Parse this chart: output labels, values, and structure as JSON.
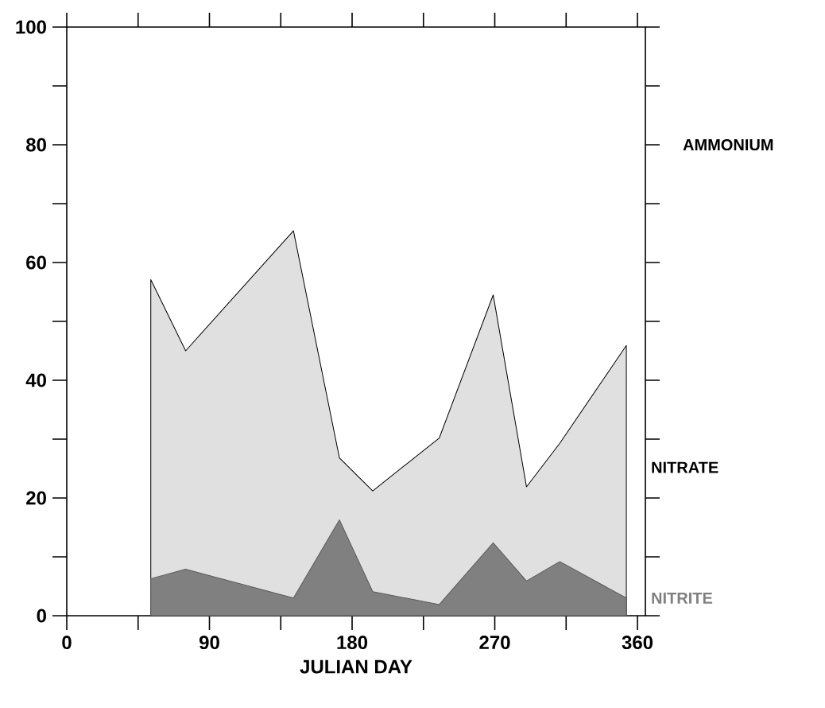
{
  "chart_data": {
    "type": "area",
    "xlabel": "JULIAN DAY",
    "xlim": [
      0,
      365
    ],
    "ylim": [
      0,
      100
    ],
    "xticks": [
      0,
      {
        "value": 45,
        "label": null
      },
      90,
      {
        "value": 135,
        "label": null
      },
      180,
      {
        "value": 225,
        "label": null
      },
      270,
      {
        "value": 315,
        "label": null
      },
      360
    ],
    "yticks": [
      0,
      {
        "value": 10,
        "label": null
      },
      20,
      {
        "value": 30,
        "label": null
      },
      40,
      {
        "value": 50,
        "label": null
      },
      60,
      {
        "value": 70,
        "label": null
      },
      80,
      {
        "value": 90,
        "label": null
      },
      100
    ],
    "x": [
      53,
      75,
      143,
      172,
      193,
      235,
      269,
      290,
      311,
      353
    ],
    "series": [
      {
        "name": "NITRATE",
        "color": "#000000",
        "values": [
          57.1,
          45.0,
          65.4,
          26.8,
          21.2,
          30.2,
          54.5,
          21.9,
          29.3,
          45.9
        ]
      },
      {
        "name": "NITRITE",
        "color": "#808080",
        "values": [
          6.3,
          7.9,
          3.0,
          16.3,
          4.1,
          1.9,
          12.4,
          5.9,
          9.2,
          3.0
        ]
      }
    ],
    "annotations": [
      "AMMONIUM"
    ],
    "grid": false
  }
}
